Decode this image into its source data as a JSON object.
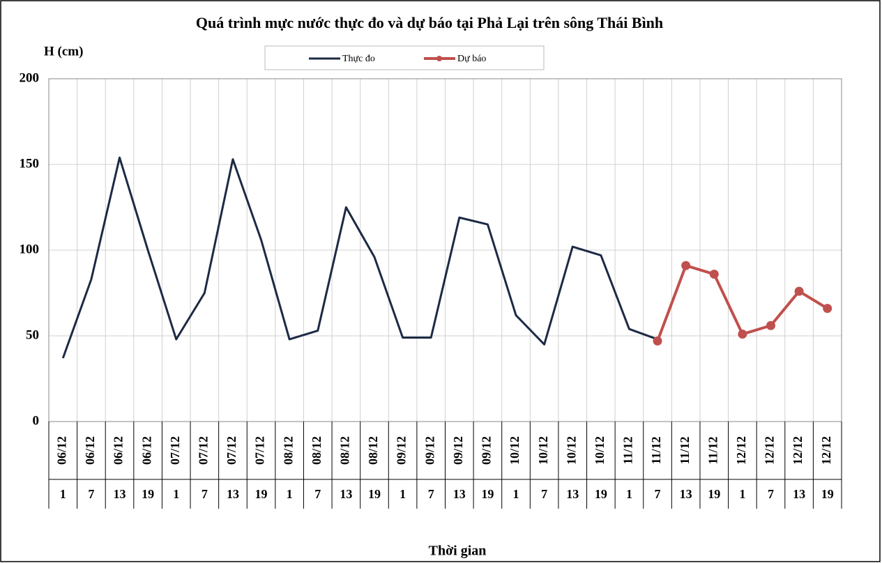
{
  "chart_data": {
    "type": "line",
    "title": "Quá trình  mực nước thực đo và dự báo tại Phả Lại trên sông Thái Bình",
    "y_label": "H (cm)",
    "x_label": "Thời gian",
    "categories": [
      "06/12",
      "06/12",
      "06/12",
      "06/12",
      "07/12",
      "07/12",
      "07/12",
      "07/12",
      "08/12",
      "08/12",
      "08/12",
      "08/12",
      "09/12",
      "09/12",
      "09/12",
      "09/12",
      "10/12",
      "10/12",
      "10/12",
      "10/12",
      "11/12",
      "11/12",
      "11/12",
      "11/12",
      "12/12",
      "12/12",
      "12/12",
      "12/12"
    ],
    "sub_categories": [
      "1",
      "7",
      "13",
      "19",
      "1",
      "7",
      "13",
      "19",
      "1",
      "7",
      "13",
      "19",
      "1",
      "7",
      "13",
      "19",
      "1",
      "7",
      "13",
      "19",
      "1",
      "7",
      "13",
      "19",
      "1",
      "7",
      "13",
      "19"
    ],
    "series": [
      {
        "name": "Thực đo",
        "color": "#1c2a44",
        "markers": false,
        "values": [
          37,
          83,
          154,
          100,
          48,
          75,
          153,
          106,
          48,
          53,
          125,
          96,
          49,
          49,
          119,
          115,
          62,
          45,
          102,
          97,
          54,
          48,
          null,
          null,
          null,
          null,
          null,
          null
        ]
      },
      {
        "name": "Dự báo",
        "color": "#c0504d",
        "markers": true,
        "values": [
          null,
          null,
          null,
          null,
          null,
          null,
          null,
          null,
          null,
          null,
          null,
          null,
          null,
          null,
          null,
          null,
          null,
          null,
          null,
          null,
          null,
          47,
          91,
          86,
          51,
          56,
          76,
          66
        ]
      }
    ],
    "ylim": [
      0,
      200
    ],
    "yticks": [
      0,
      50,
      100,
      150,
      200
    ],
    "grid": true
  }
}
